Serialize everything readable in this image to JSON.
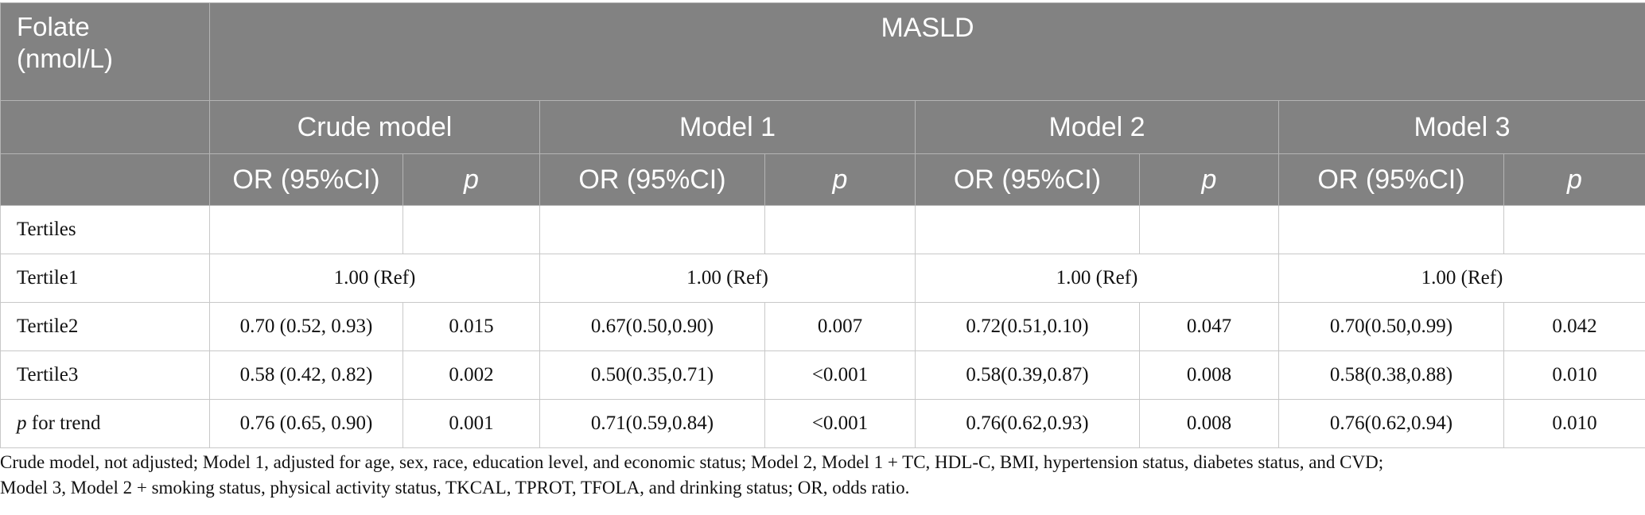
{
  "header": {
    "folate_label_line1": "Folate",
    "folate_label_line2": "(nmol/L)",
    "outcome": "MASLD",
    "models": [
      "Crude model",
      "Model 1",
      "Model 2",
      "Model 3"
    ],
    "or_label": "OR (95%CI)",
    "p_label": "p"
  },
  "rows": {
    "tertiles": {
      "label": "Tertiles"
    },
    "tertile1": {
      "label": "Tertile1",
      "ref": [
        "1.00 (Ref)",
        "1.00 (Ref)",
        "1.00 (Ref)",
        "1.00 (Ref)"
      ]
    },
    "tertile2": {
      "label": "Tertile2",
      "or": [
        "0.70 (0.52, 0.93)",
        "0.67(0.50,0.90)",
        "0.72(0.51,0.10)",
        "0.70(0.50,0.99)"
      ],
      "p": [
        "0.015",
        "0.007",
        "0.047",
        "0.042"
      ]
    },
    "tertile3": {
      "label": "Tertile3",
      "or": [
        "0.58 (0.42, 0.82)",
        "0.50(0.35,0.71)",
        "0.58(0.39,0.87)",
        "0.58(0.38,0.88)"
      ],
      "p": [
        "0.002",
        "<0.001",
        "0.008",
        "0.010"
      ]
    },
    "trend": {
      "label_italic": "p",
      "label_rest": " for trend",
      "or": [
        "0.76 (0.65, 0.90)",
        "0.71(0.59,0.84)",
        "0.76(0.62,0.93)",
        "0.76(0.62,0.94)"
      ],
      "p": [
        "0.001",
        "<0.001",
        "0.008",
        "0.010"
      ]
    }
  },
  "footnote": {
    "line1": "Crude model, not adjusted; Model 1, adjusted for age, sex, race, education level, and economic status; Model 2, Model 1 + TC, HDL-C, BMI, hypertension status, diabetes status, and CVD;",
    "line2": "Model 3, Model 2 + smoking status, physical activity status, TKCAL, TPROT, TFOLA, and drinking status; OR, odds ratio."
  }
}
